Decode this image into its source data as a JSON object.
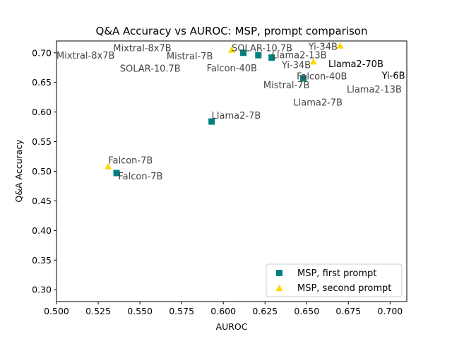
{
  "chart_data": {
    "type": "scatter",
    "title": "Q&A Accuracy vs AUROC: MSP, prompt comparison",
    "xlabel": "AUROC",
    "ylabel": "Q&A Accuracy",
    "xlim": [
      0.5,
      0.71
    ],
    "ylim": [
      0.28,
      0.72
    ],
    "xticks": [
      "0.500",
      "0.525",
      "0.550",
      "0.575",
      "0.600",
      "0.625",
      "0.650",
      "0.675",
      "0.700"
    ],
    "yticks": [
      "0.30",
      "0.35",
      "0.40",
      "0.45",
      "0.50",
      "0.55",
      "0.60",
      "0.65",
      "0.70"
    ],
    "grid": false,
    "legend_position": "lower-right",
    "series": [
      {
        "name": "MSP, first prompt",
        "marker": "square",
        "color": "#008080",
        "points": [
          {
            "label": "Falcon-7B",
            "x": 0.536,
            "y": 0.497
          },
          {
            "label": "Llama2-7B",
            "x": 0.593,
            "y": 0.584
          },
          {
            "label": "SOLAR-10.7B",
            "x": 0.612,
            "y": 0.7
          },
          {
            "label": "Falcon-40B",
            "x": 0.621,
            "y": 0.696
          },
          {
            "label": "Llama2-13B",
            "x": 0.629,
            "y": 0.692
          },
          {
            "label": "Mistral-7B",
            "x": 0.648,
            "y": 0.657
          }
        ]
      },
      {
        "name": "MSP, second prompt",
        "marker": "triangle",
        "color": "#FFD700",
        "points": [
          {
            "label": "Falcon-7B",
            "x": 0.531,
            "y": 0.508
          },
          {
            "label": "SOLAR-10.7B",
            "x": 0.605,
            "y": 0.705
          },
          {
            "label": "Yi-34B",
            "x": 0.654,
            "y": 0.685
          },
          {
            "label": "Yi-34B",
            "x": 0.67,
            "y": 0.712
          }
        ]
      }
    ],
    "annotations": [
      {
        "text": "Mixtral-8x7B",
        "x": 0.5,
        "y": 0.69,
        "color": "#444444"
      },
      {
        "text": "Mixtral-8x7B",
        "x": 0.534,
        "y": 0.703,
        "color": "#444444"
      },
      {
        "text": "SOLAR-10.7B",
        "x": 0.538,
        "y": 0.668,
        "color": "#444444"
      },
      {
        "text": "Mistral-7B",
        "x": 0.566,
        "y": 0.689,
        "color": "#444444"
      },
      {
        "text": "Falcon-40B",
        "x": 0.59,
        "y": 0.669,
        "color": "#444444"
      },
      {
        "text": "SOLAR-10.7B",
        "x": 0.605,
        "y": 0.703,
        "color": "#444444"
      },
      {
        "text": "Llama2-13B",
        "x": 0.629,
        "y": 0.691,
        "color": "#444444"
      },
      {
        "text": "Yi-34B",
        "x": 0.635,
        "y": 0.674,
        "color": "#444444"
      },
      {
        "text": "Falcon-40B",
        "x": 0.644,
        "y": 0.655,
        "color": "#444444"
      },
      {
        "text": "Mistral-7B",
        "x": 0.624,
        "y": 0.64,
        "color": "#444444"
      },
      {
        "text": "Llama2-7B",
        "x": 0.642,
        "y": 0.611,
        "color": "#444444"
      },
      {
        "text": "Yi-34B",
        "x": 0.651,
        "y": 0.705,
        "color": "#444444"
      },
      {
        "text": "Llama2-70B",
        "x": 0.663,
        "y": 0.676,
        "color": "#000000"
      },
      {
        "text": "Yi-6B",
        "x": 0.695,
        "y": 0.656,
        "color": "#000000"
      },
      {
        "text": "Llama2-13B",
        "x": 0.674,
        "y": 0.633,
        "color": "#444444"
      },
      {
        "text": "Falcon-7B",
        "x": 0.531,
        "y": 0.513,
        "color": "#444444"
      },
      {
        "text": "Llama2-7B",
        "x": 0.593,
        "y": 0.589,
        "color": "#444444"
      },
      {
        "text": "Falcon-7B",
        "x": 0.537,
        "y": 0.486,
        "color": "#444444"
      }
    ]
  }
}
